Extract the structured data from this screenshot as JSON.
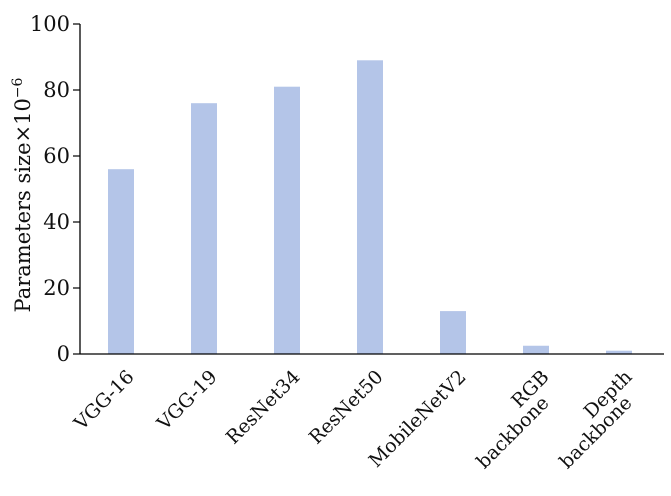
{
  "chart_data": {
    "type": "bar",
    "categories": [
      [
        "VGG-16"
      ],
      [
        "VGG-19"
      ],
      [
        "ResNet34"
      ],
      [
        "ResNet50"
      ],
      [
        "MobileNetV2"
      ],
      [
        "RGB",
        "backbone"
      ],
      [
        "Depth",
        "backbone"
      ]
    ],
    "values": [
      56,
      76,
      81,
      89,
      13,
      2.5,
      1
    ],
    "ylabel": "Parameters size×10",
    "ylabel_exponent": "−6",
    "xlabel": "",
    "ylim": [
      0,
      100
    ],
    "yticks": [
      0,
      20,
      40,
      60,
      80,
      100
    ],
    "grid": false,
    "bar_color": "#b4c5e8"
  }
}
